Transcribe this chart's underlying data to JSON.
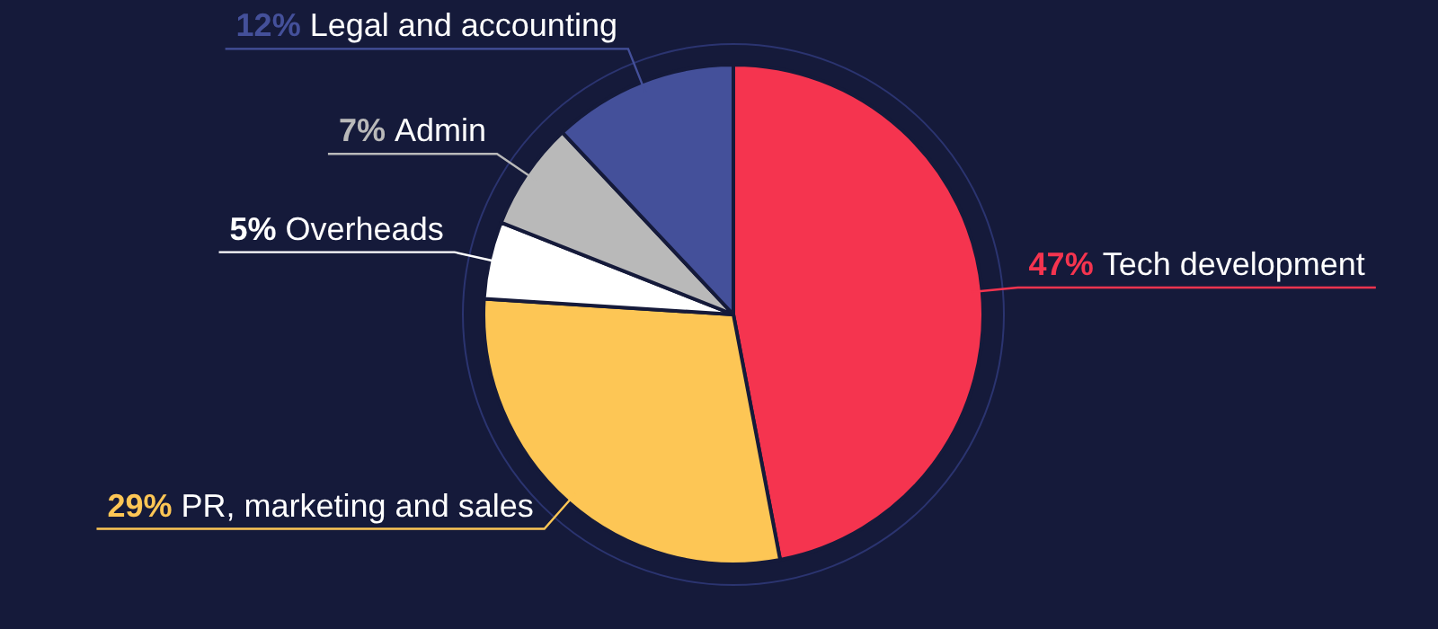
{
  "chart_data": {
    "type": "pie",
    "categories": [
      "Tech development",
      "PR, marketing and sales",
      "Overheads",
      "Admin",
      "Legal and accounting"
    ],
    "values": [
      47,
      29,
      5,
      7,
      12
    ],
    "value_labels": [
      "47%",
      "29%",
      "5%",
      "7%",
      "12%"
    ],
    "colors": [
      "#f5344f",
      "#fdc655",
      "#ffffff",
      "#b9b9b9",
      "#44509a"
    ],
    "legend": false
  }
}
